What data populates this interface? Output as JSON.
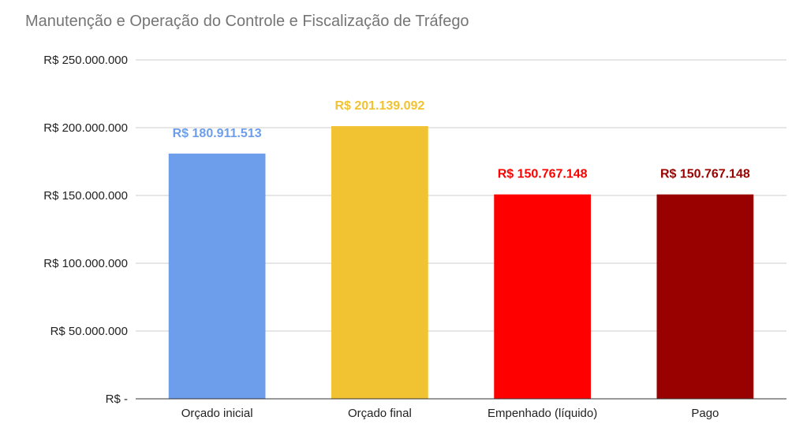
{
  "chart_data": {
    "type": "bar",
    "title": "Manutenção e Operação do Controle e Fiscalização de Tráfego",
    "categories": [
      "Orçado inicial",
      "Orçado final",
      "Empenhado (líquido)",
      "Pago"
    ],
    "values": [
      180911513,
      201139092,
      150767148,
      150767148
    ],
    "data_labels": [
      "R$ 180.911.513",
      "R$ 201.139.092",
      "R$ 150.767.148",
      "R$ 150.767.148"
    ],
    "colors": [
      "#6d9eeb",
      "#f1c232",
      "#ff0000",
      "#990000"
    ],
    "ylim": [
      0,
      250000000
    ],
    "y_ticks": [
      0,
      50000000,
      100000000,
      150000000,
      200000000,
      250000000
    ],
    "y_tick_labels": [
      "R$ -",
      "R$ 50.000.000",
      "R$ 100.000.000",
      "R$ 150.000.000",
      "R$ 200.000.000",
      "R$ 250.000.000"
    ],
    "xlabel": "",
    "ylabel": "",
    "grid": true,
    "legend": "none"
  }
}
